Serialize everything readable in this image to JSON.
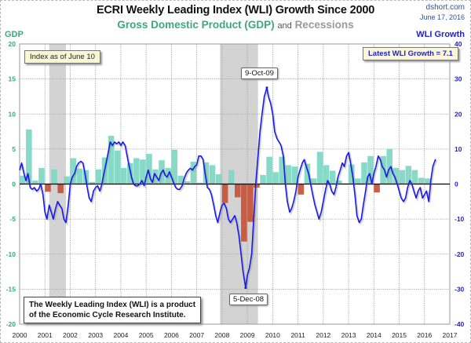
{
  "header": {
    "title": "ECRI Weekly Leading Index (WLI) Growth Since 2000",
    "subtitle_gdp": "Gross Domestic Product (GDP)",
    "subtitle_and": "and",
    "subtitle_recessions": "Recessions",
    "source": "dshort.com",
    "date": "June 17, 2016"
  },
  "notes": {
    "index_as_of": "Index as of June 10",
    "latest_wli": "Latest WLI Growth = 7.1",
    "peak_label": "9-Oct-09",
    "trough_label": "5-Dec-08",
    "wli_source_line1": "The Weekly Leading Index (WLI) is a product",
    "wli_source_line2": "of the Economic Cycle Research Institute."
  },
  "colors": {
    "gdp_positive": "#7fd8c4",
    "gdp_negative": "#c8553a",
    "wli_line": "#1a1ae6",
    "recession": "#d3d3d3",
    "left_axis": "#3aaa78",
    "right_axis": "#2222cc"
  },
  "chart_data": {
    "type": "bar+line",
    "title": "ECRI Weekly Leading Index (WLI) Growth Since 2000",
    "subtitle": "Gross Domestic Product (GDP) and Recessions",
    "left_axis": {
      "label": "GDP",
      "range": [
        -20,
        20
      ],
      "ticks": [
        20,
        15,
        10,
        5,
        0,
        -5,
        -10,
        -15,
        -20
      ]
    },
    "right_axis": {
      "label": "WLI Growth",
      "range": [
        -40,
        40
      ],
      "ticks": [
        40,
        30,
        20,
        10,
        0,
        -10,
        -20,
        -30,
        -40
      ]
    },
    "x_axis": {
      "range": [
        2000,
        2017
      ],
      "ticks": [
        "2000",
        "2001",
        "2002",
        "2003",
        "2004",
        "2005",
        "2006",
        "2007",
        "2008",
        "2009",
        "2010",
        "2011",
        "2012",
        "2013",
        "2014",
        "2015",
        "2016",
        "2017"
      ]
    },
    "grid": true,
    "recessions": [
      {
        "start": 2001.17,
        "end": 2001.83
      },
      {
        "start": 2007.92,
        "end": 2009.42
      }
    ],
    "gdp_series": {
      "name": "GDP (quarterly, annualized %)",
      "start": 2000.0,
      "step": 0.25,
      "values": [
        1.2,
        7.8,
        0.5,
        2.3,
        -1.1,
        2.1,
        -1.3,
        1.1,
        3.7,
        2.2,
        2.0,
        0.3,
        2.1,
        3.8,
        6.9,
        4.8,
        2.3,
        3.0,
        3.7,
        3.5,
        4.3,
        2.1,
        3.4,
        2.3,
        4.9,
        1.2,
        0.4,
        3.2,
        0.2,
        3.1,
        2.7,
        1.4,
        -2.7,
        2.0,
        -1.9,
        -8.2,
        -5.4,
        -0.5,
        1.3,
        3.9,
        1.7,
        3.9,
        2.7,
        2.5,
        -1.5,
        2.9,
        0.8,
        4.6,
        2.7,
        1.9,
        0.5,
        0.1,
        2.8,
        0.8,
        3.1,
        4.0,
        -1.2,
        4.0,
        5.0,
        2.3,
        2.0,
        2.6,
        2.0,
        0.9,
        0.8
      ]
    },
    "wli_series": {
      "name": "WLI Growth (weekly)",
      "points": [
        [
          2000.0,
          4.0
        ],
        [
          2000.08,
          6.0
        ],
        [
          2000.17,
          3.0
        ],
        [
          2000.25,
          1.0
        ],
        [
          2000.33,
          3.0
        ],
        [
          2000.42,
          -1.0
        ],
        [
          2000.5,
          -1.5
        ],
        [
          2000.58,
          -1.0
        ],
        [
          2000.67,
          -2.0
        ],
        [
          2000.75,
          -1.5
        ],
        [
          2000.83,
          0.0
        ],
        [
          2000.92,
          -3.0
        ],
        [
          2001.0,
          -8.0
        ],
        [
          2001.08,
          -10.0
        ],
        [
          2001.17,
          -6.0
        ],
        [
          2001.25,
          -8.0
        ],
        [
          2001.33,
          -10.0
        ],
        [
          2001.42,
          -7.0
        ],
        [
          2001.5,
          -5.0
        ],
        [
          2001.58,
          -6.0
        ],
        [
          2001.67,
          -7.0
        ],
        [
          2001.75,
          -10.0
        ],
        [
          2001.83,
          -11.0
        ],
        [
          2001.92,
          -6.0
        ],
        [
          2002.0,
          0.0
        ],
        [
          2002.08,
          2.0
        ],
        [
          2002.17,
          3.0
        ],
        [
          2002.25,
          5.0
        ],
        [
          2002.33,
          6.0
        ],
        [
          2002.42,
          6.5
        ],
        [
          2002.5,
          6.0
        ],
        [
          2002.58,
          3.0
        ],
        [
          2002.67,
          -1.0
        ],
        [
          2002.75,
          -4.0
        ],
        [
          2002.83,
          -5.0
        ],
        [
          2002.92,
          -2.0
        ],
        [
          2003.0,
          -1.0
        ],
        [
          2003.08,
          -0.5
        ],
        [
          2003.17,
          -2.0
        ],
        [
          2003.25,
          0.0
        ],
        [
          2003.33,
          3.0
        ],
        [
          2003.42,
          6.0
        ],
        [
          2003.5,
          9.0
        ],
        [
          2003.58,
          12.0
        ],
        [
          2003.67,
          11.0
        ],
        [
          2003.75,
          12.0
        ],
        [
          2003.83,
          11.5
        ],
        [
          2003.92,
          12.0
        ],
        [
          2004.0,
          11.0
        ],
        [
          2004.08,
          12.0
        ],
        [
          2004.17,
          11.0
        ],
        [
          2004.25,
          8.0
        ],
        [
          2004.33,
          5.0
        ],
        [
          2004.42,
          2.0
        ],
        [
          2004.5,
          0.0
        ],
        [
          2004.58,
          -0.5
        ],
        [
          2004.67,
          -0.5
        ],
        [
          2004.75,
          0.0
        ],
        [
          2004.83,
          1.0
        ],
        [
          2004.92,
          -0.5
        ],
        [
          2005.0,
          2.0
        ],
        [
          2005.08,
          4.0
        ],
        [
          2005.17,
          1.5
        ],
        [
          2005.25,
          0.5
        ],
        [
          2005.33,
          3.0
        ],
        [
          2005.42,
          2.0
        ],
        [
          2005.5,
          1.0
        ],
        [
          2005.58,
          3.0
        ],
        [
          2005.67,
          4.0
        ],
        [
          2005.75,
          2.5
        ],
        [
          2005.83,
          2.0
        ],
        [
          2005.92,
          3.5
        ],
        [
          2006.0,
          2.0
        ],
        [
          2006.08,
          0.5
        ],
        [
          2006.17,
          -1.0
        ],
        [
          2006.25,
          -1.5
        ],
        [
          2006.33,
          -1.5
        ],
        [
          2006.42,
          -0.5
        ],
        [
          2006.5,
          1.5
        ],
        [
          2006.58,
          3.0
        ],
        [
          2006.67,
          4.0
        ],
        [
          2006.75,
          4.5
        ],
        [
          2006.83,
          4.0
        ],
        [
          2006.92,
          5.0
        ],
        [
          2007.0,
          5.5
        ],
        [
          2007.08,
          8.0
        ],
        [
          2007.17,
          8.0
        ],
        [
          2007.25,
          7.0
        ],
        [
          2007.33,
          3.0
        ],
        [
          2007.42,
          -1.0
        ],
        [
          2007.5,
          -1.5
        ],
        [
          2007.58,
          -3.0
        ],
        [
          2007.67,
          -6.0
        ],
        [
          2007.75,
          -9.0
        ],
        [
          2007.83,
          -11.0
        ],
        [
          2007.92,
          -8.0
        ],
        [
          2008.0,
          -6.0
        ],
        [
          2008.08,
          -5.5
        ],
        [
          2008.17,
          -7.0
        ],
        [
          2008.25,
          -10.0
        ],
        [
          2008.33,
          -11.0
        ],
        [
          2008.42,
          -10.0
        ],
        [
          2008.5,
          -9.0
        ],
        [
          2008.58,
          -11.0
        ],
        [
          2008.67,
          -15.0
        ],
        [
          2008.75,
          -20.0
        ],
        [
          2008.83,
          -25.0
        ],
        [
          2008.93,
          -29.6
        ],
        [
          2009.0,
          -26.0
        ],
        [
          2009.08,
          -24.0
        ],
        [
          2009.17,
          -20.0
        ],
        [
          2009.25,
          -10.0
        ],
        [
          2009.33,
          0.0
        ],
        [
          2009.42,
          8.0
        ],
        [
          2009.5,
          15.0
        ],
        [
          2009.58,
          20.0
        ],
        [
          2009.67,
          25.0
        ],
        [
          2009.77,
          27.5
        ],
        [
          2009.83,
          25.0
        ],
        [
          2009.92,
          23.0
        ],
        [
          2010.0,
          20.0
        ],
        [
          2010.08,
          15.0
        ],
        [
          2010.17,
          13.0
        ],
        [
          2010.25,
          12.0
        ],
        [
          2010.33,
          11.0
        ],
        [
          2010.42,
          8.0
        ],
        [
          2010.5,
          0.0
        ],
        [
          2010.58,
          -5.0
        ],
        [
          2010.67,
          -8.0
        ],
        [
          2010.75,
          -7.0
        ],
        [
          2010.83,
          -5.0
        ],
        [
          2010.92,
          -2.0
        ],
        [
          2011.0,
          2.0
        ],
        [
          2011.08,
          4.0
        ],
        [
          2011.17,
          6.0
        ],
        [
          2011.25,
          7.0
        ],
        [
          2011.33,
          5.0
        ],
        [
          2011.42,
          3.0
        ],
        [
          2011.5,
          0.0
        ],
        [
          2011.58,
          -3.0
        ],
        [
          2011.67,
          -6.0
        ],
        [
          2011.75,
          -8.0
        ],
        [
          2011.83,
          -10.0
        ],
        [
          2011.92,
          -8.0
        ],
        [
          2012.0,
          -5.0
        ],
        [
          2012.08,
          -2.0
        ],
        [
          2012.17,
          1.0
        ],
        [
          2012.25,
          0.0
        ],
        [
          2012.33,
          -2.0
        ],
        [
          2012.42,
          -3.0
        ],
        [
          2012.5,
          -1.0
        ],
        [
          2012.58,
          2.0
        ],
        [
          2012.67,
          4.0
        ],
        [
          2012.75,
          6.0
        ],
        [
          2012.83,
          5.0
        ],
        [
          2012.92,
          8.0
        ],
        [
          2013.0,
          9.0
        ],
        [
          2013.08,
          6.0
        ],
        [
          2013.17,
          2.0
        ],
        [
          2013.25,
          -3.0
        ],
        [
          2013.33,
          -9.0
        ],
        [
          2013.42,
          -11.0
        ],
        [
          2013.5,
          -10.0
        ],
        [
          2013.58,
          -6.0
        ],
        [
          2013.67,
          -2.0
        ],
        [
          2013.75,
          2.0
        ],
        [
          2013.83,
          3.0
        ],
        [
          2013.92,
          0.0
        ],
        [
          2014.0,
          3.0
        ],
        [
          2014.08,
          5.0
        ],
        [
          2014.17,
          8.0
        ],
        [
          2014.25,
          7.0
        ],
        [
          2014.33,
          5.0
        ],
        [
          2014.42,
          4.0
        ],
        [
          2014.5,
          2.0
        ],
        [
          2014.58,
          4.0
        ],
        [
          2014.67,
          5.0
        ],
        [
          2014.75,
          3.0
        ],
        [
          2014.83,
          2.0
        ],
        [
          2014.92,
          0.0
        ],
        [
          2015.0,
          -2.0
        ],
        [
          2015.08,
          -4.0
        ],
        [
          2015.17,
          -5.0
        ],
        [
          2015.25,
          -4.0
        ],
        [
          2015.33,
          -1.0
        ],
        [
          2015.42,
          1.0
        ],
        [
          2015.5,
          0.0
        ],
        [
          2015.58,
          -2.0
        ],
        [
          2015.67,
          -4.0
        ],
        [
          2015.75,
          -2.0
        ],
        [
          2015.83,
          -1.0
        ],
        [
          2015.92,
          -4.0
        ],
        [
          2016.0,
          -3.0
        ],
        [
          2016.08,
          -2.0
        ],
        [
          2016.17,
          -5.0
        ],
        [
          2016.25,
          1.0
        ],
        [
          2016.33,
          5.0
        ],
        [
          2016.38,
          6.0
        ],
        [
          2016.44,
          7.1
        ]
      ]
    },
    "annotations": [
      {
        "label": "9-Oct-09",
        "x": 2009.77,
        "y": 27.5,
        "axis": "right"
      },
      {
        "label": "5-Dec-08",
        "x": 2008.93,
        "y": -29.6,
        "axis": "right"
      }
    ]
  }
}
